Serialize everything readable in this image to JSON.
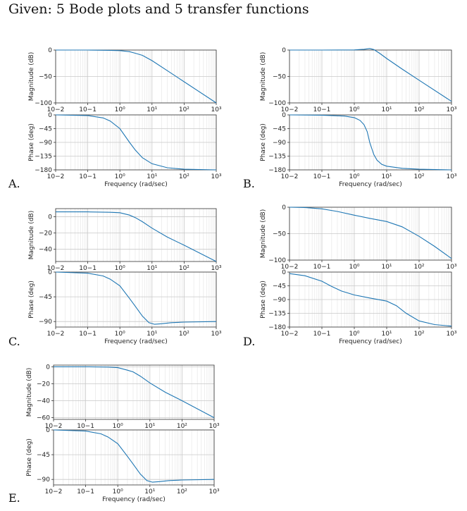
{
  "title": "Given: 5 Bode plots and 5 transfer functions",
  "line_color": "#1f77b4",
  "chart_data": [
    {
      "label": "A.",
      "type": "line",
      "x_scale": "log",
      "xlim": [
        0.01,
        1000
      ],
      "x_ticks": [
        "10−2",
        "10−1",
        "10⁰",
        "10¹",
        "10²",
        "10³"
      ],
      "xlabel": "Frequency (rad/sec)",
      "magnitude": {
        "ylabel": "Magnitude (dB)",
        "ylim": [
          -100,
          0
        ],
        "yticks": [
          0,
          -50,
          -100
        ],
        "x": [
          0.01,
          0.1,
          0.5,
          1,
          2,
          3,
          5,
          10,
          30,
          100,
          1000
        ],
        "y": [
          0,
          0,
          -0.5,
          -1,
          -3,
          -6,
          -10,
          -20,
          -39,
          -60,
          -100
        ]
      },
      "phase": {
        "ylabel": "Phase (deg)",
        "ylim": [
          -180,
          0
        ],
        "yticks": [
          0,
          -45,
          -90,
          -135,
          -180
        ],
        "x": [
          0.01,
          0.1,
          0.3,
          0.5,
          1,
          2,
          3,
          5,
          10,
          30,
          100,
          1000
        ],
        "y": [
          0,
          -2,
          -10,
          -20,
          -45,
          -90,
          -115,
          -140,
          -160,
          -173,
          -178,
          -180
        ]
      }
    },
    {
      "label": "B.",
      "type": "line",
      "x_scale": "log",
      "xlim": [
        0.01,
        1000
      ],
      "x_ticks": [
        "10−2",
        "10−1",
        "10⁰",
        "10¹",
        "10²",
        "10³"
      ],
      "xlabel": "Frequency (rad/sec)",
      "magnitude": {
        "ylabel": "Magnitude (dB)",
        "ylim": [
          -100,
          0
        ],
        "yticks": [
          0,
          -50,
          -100
        ],
        "x": [
          0.01,
          0.1,
          1,
          2,
          3,
          4,
          6,
          10,
          30,
          100,
          1000
        ],
        "y": [
          0,
          0,
          0.3,
          1.5,
          3,
          1,
          -6,
          -16,
          -36,
          -57,
          -97
        ]
      },
      "phase": {
        "ylabel": "Phase (deg)",
        "ylim": [
          -180,
          0
        ],
        "yticks": [
          0,
          -45,
          -90,
          -135,
          -180
        ],
        "x": [
          0.01,
          0.1,
          0.5,
          1,
          1.5,
          2,
          2.5,
          3,
          4,
          5,
          7,
          10,
          30,
          100,
          1000
        ],
        "y": [
          0,
          -1,
          -4,
          -9,
          -18,
          -32,
          -55,
          -90,
          -130,
          -148,
          -162,
          -168,
          -175,
          -178,
          -180
        ]
      }
    },
    {
      "label": "C.",
      "type": "line",
      "x_scale": "log",
      "xlim": [
        0.01,
        1000
      ],
      "x_ticks": [
        "10−2",
        "10−1",
        "10⁰",
        "10¹",
        "10²",
        "10³"
      ],
      "xlabel": "Frequency (rad/sec)",
      "magnitude": {
        "ylabel": "Magnitude (dB)",
        "ylim": [
          -55,
          10
        ],
        "yticks": [
          0,
          -20,
          -40
        ],
        "x": [
          0.01,
          0.1,
          0.5,
          1,
          2,
          3,
          5,
          10,
          30,
          100,
          1000
        ],
        "y": [
          6,
          6,
          5.5,
          5,
          2,
          -1,
          -6,
          -14,
          -25,
          -35,
          -55
        ]
      },
      "phase": {
        "ylabel": "Phase (deg)",
        "ylim": [
          -100,
          0
        ],
        "yticks": [
          0,
          -45,
          -90
        ],
        "x": [
          0.01,
          0.1,
          0.3,
          0.5,
          1,
          2,
          3,
          5,
          8,
          12,
          20,
          40,
          100,
          1000
        ],
        "y": [
          0,
          -2,
          -7,
          -13,
          -25,
          -48,
          -62,
          -80,
          -92,
          -95,
          -94,
          -92,
          -91,
          -90
        ]
      }
    },
    {
      "label": "D.",
      "type": "line",
      "x_scale": "log",
      "xlim": [
        0.01,
        1000
      ],
      "x_ticks": [
        "10−2",
        "10−1",
        "10⁰",
        "10¹",
        "10²",
        "10³"
      ],
      "xlabel": "Frequency (rad/sec)",
      "magnitude": {
        "ylabel": "Magnitude (dB)",
        "ylim": [
          -100,
          0
        ],
        "yticks": [
          0,
          -50,
          -100
        ],
        "x": [
          0.01,
          0.03,
          0.1,
          0.3,
          1,
          3,
          10,
          30,
          100,
          300,
          1000
        ],
        "y": [
          0,
          -0.5,
          -3,
          -8,
          -15,
          -21,
          -27,
          -37,
          -55,
          -74,
          -97
        ]
      },
      "phase": {
        "ylabel": "Phase (deg)",
        "ylim": [
          -180,
          0
        ],
        "yticks": [
          0,
          -45,
          -90,
          -135,
          -180
        ],
        "x": [
          0.01,
          0.03,
          0.1,
          0.2,
          0.4,
          1,
          3,
          10,
          20,
          40,
          100,
          300,
          1000
        ],
        "y": [
          -5,
          -12,
          -30,
          -47,
          -62,
          -75,
          -85,
          -95,
          -110,
          -135,
          -160,
          -172,
          -177
        ]
      }
    },
    {
      "label": "E.",
      "type": "line",
      "x_scale": "log",
      "xlim": [
        0.01,
        1000
      ],
      "x_ticks": [
        "10−2",
        "10−1",
        "10⁰",
        "10¹",
        "10²",
        "10³"
      ],
      "xlabel": "Frequency (rad/sec)",
      "magnitude": {
        "ylabel": "Magnitude (dB)",
        "ylim": [
          -62,
          2
        ],
        "yticks": [
          0,
          -20,
          -40,
          -60
        ],
        "x": [
          0.01,
          0.1,
          0.5,
          1,
          2,
          3,
          5,
          10,
          30,
          100,
          1000
        ],
        "y": [
          0,
          0,
          -0.3,
          -1,
          -4,
          -6,
          -11,
          -19,
          -30,
          -40,
          -60
        ]
      },
      "phase": {
        "ylabel": "Phase (deg)",
        "ylim": [
          -100,
          0
        ],
        "yticks": [
          0,
          -45,
          -90
        ],
        "x": [
          0.01,
          0.1,
          0.3,
          0.5,
          1,
          2,
          3,
          5,
          8,
          12,
          20,
          40,
          100,
          1000
        ],
        "y": [
          0,
          -2,
          -7,
          -13,
          -25,
          -48,
          -62,
          -80,
          -92,
          -95,
          -94,
          -92,
          -91,
          -90
        ]
      }
    }
  ]
}
